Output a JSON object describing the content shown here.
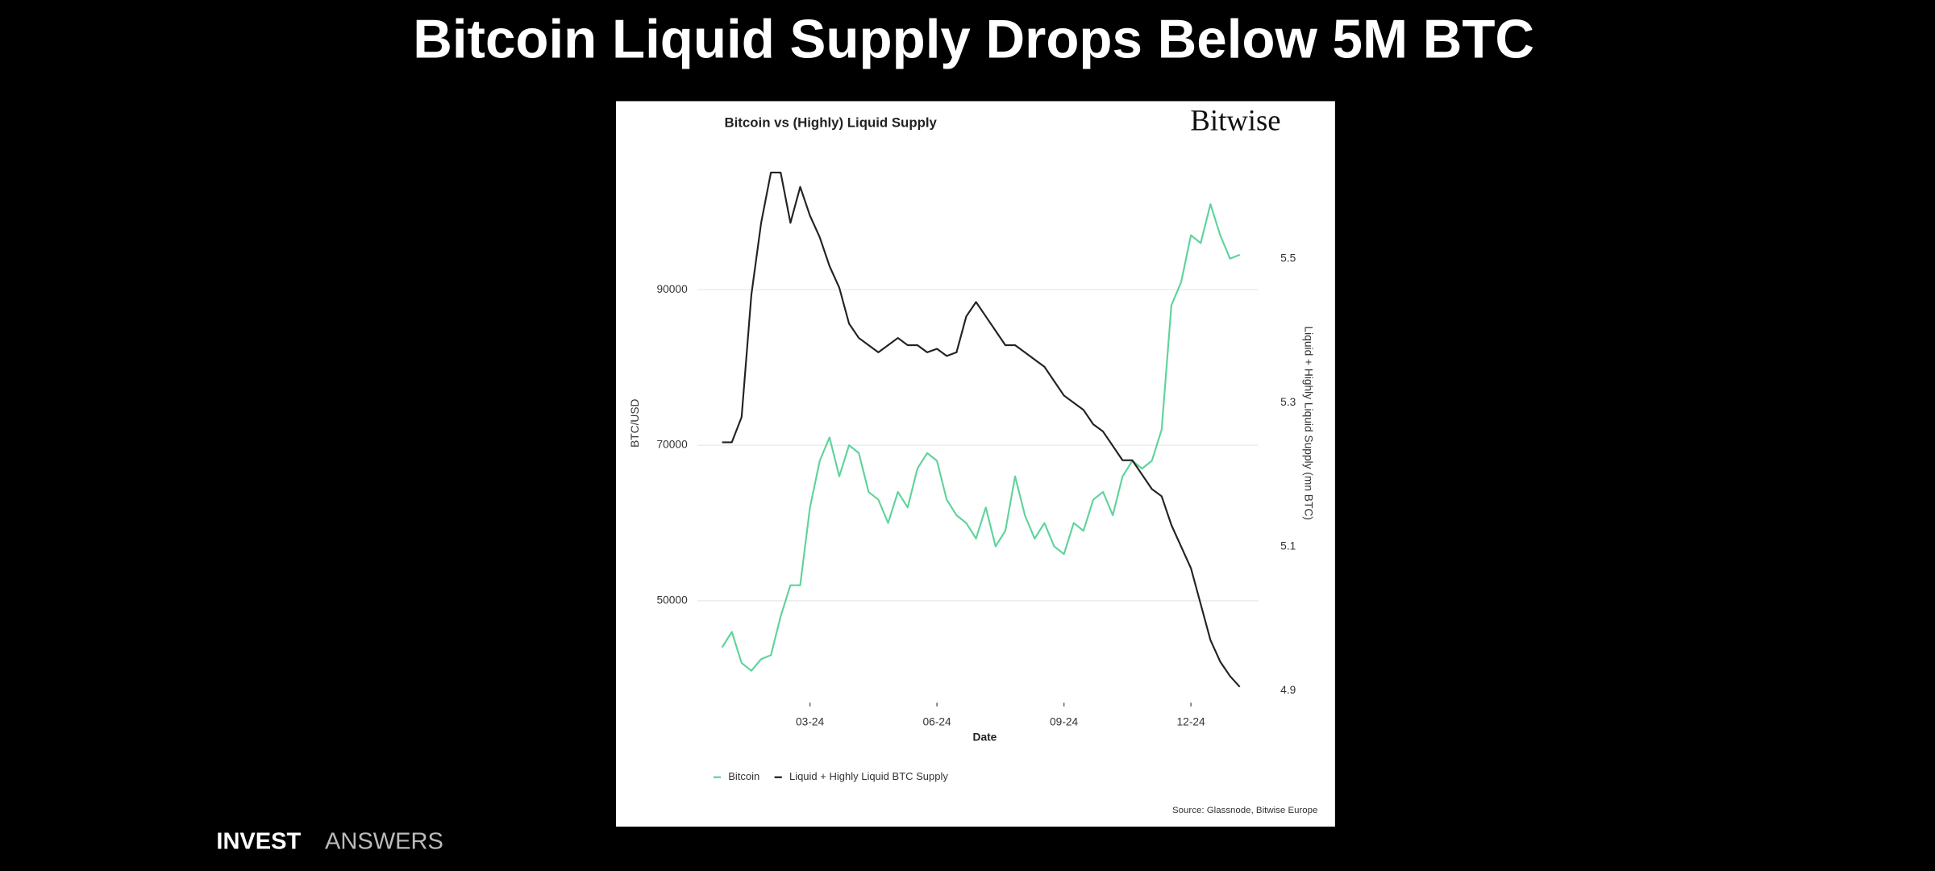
{
  "page": {
    "title": "Bitcoin Liquid Supply Drops Below 5M BTC",
    "brand": [
      "INVEST",
      "ANSWERS"
    ]
  },
  "chart_data": {
    "type": "line",
    "title": "Bitcoin vs (Highly) Liquid Supply",
    "logo": "Bitwise",
    "xlabel": "Date",
    "ylabel": "BTC/USD",
    "y2label": "Liquid + Highly Liquid Supply (mn BTC)",
    "source": "Source: Glassnode, Bitwise Europe",
    "categories": [
      null,
      null,
      null,
      null,
      null,
      null,
      null,
      null,
      null,
      "03-24",
      null,
      null,
      null,
      null,
      null,
      null,
      null,
      null,
      null,
      null,
      null,
      null,
      "06-24",
      null,
      null,
      null,
      null,
      null,
      null,
      null,
      null,
      null,
      null,
      null,
      null,
      "09-24",
      null,
      null,
      null,
      null,
      null,
      null,
      null,
      null,
      null,
      null,
      null,
      null,
      "12-24",
      null,
      null,
      null,
      null,
      null
    ],
    "series": [
      {
        "name": "Bitcoin",
        "color": "#5fd39a",
        "axis": "y",
        "values": [
          44000,
          46000,
          42000,
          41000,
          42500,
          43000,
          48000,
          52000,
          52000,
          62000,
          68000,
          71000,
          66000,
          70000,
          69000,
          64000,
          63000,
          60000,
          64000,
          62000,
          67000,
          69000,
          68000,
          63000,
          61000,
          60000,
          58000,
          62000,
          57000,
          59000,
          66000,
          61000,
          58000,
          60000,
          57000,
          56000,
          60000,
          59000,
          63000,
          64000,
          61000,
          66000,
          68000,
          67000,
          68000,
          72000,
          88000,
          91000,
          97000,
          96000,
          101000,
          97000,
          94000,
          94500
        ]
      },
      {
        "name": "Liquid + Highly Liquid BTC Supply",
        "color": "#222222",
        "axis": "y2",
        "values": [
          5.245,
          5.245,
          5.28,
          5.45,
          5.55,
          5.62,
          5.62,
          5.55,
          5.6,
          5.56,
          5.53,
          5.49,
          5.46,
          5.41,
          5.39,
          5.38,
          5.37,
          5.38,
          5.39,
          5.38,
          5.38,
          5.37,
          5.375,
          5.365,
          5.37,
          5.42,
          5.44,
          5.42,
          5.4,
          5.38,
          5.38,
          5.37,
          5.36,
          5.35,
          5.33,
          5.31,
          5.3,
          5.29,
          5.27,
          5.26,
          5.24,
          5.22,
          5.22,
          5.2,
          5.18,
          5.17,
          5.13,
          5.1,
          5.07,
          5.02,
          4.97,
          4.94,
          4.92,
          4.905
        ]
      }
    ],
    "ylim": [
      38000,
      106000
    ],
    "yticks": [
      50000,
      70000,
      90000
    ],
    "y2lim": [
      4.895,
      5.63
    ],
    "y2ticks": [
      4.9,
      5.1,
      5.3,
      5.5
    ],
    "grid": true,
    "legend": "bottom"
  }
}
